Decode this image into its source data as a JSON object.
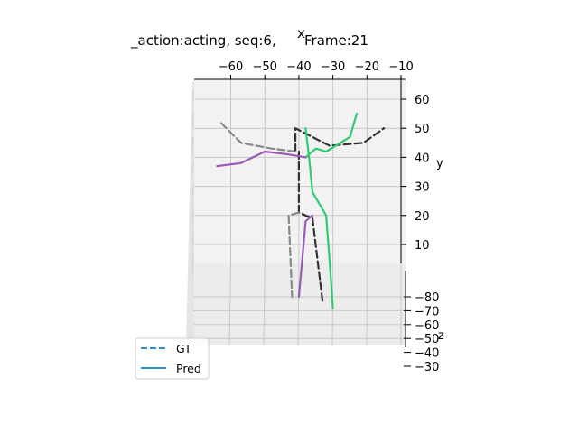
{
  "chart_data": {
    "type": "line",
    "projection": "3d",
    "title": "_action:acting, seq:6, ",
    "title_suffix": "Frame:21",
    "xlabel": "x",
    "ylabel": "y",
    "zlabel": "z",
    "x_ticks": [
      "−60",
      "−50",
      "−40",
      "−30",
      "−20",
      "−10"
    ],
    "y_ticks": [
      "10",
      "20",
      "30",
      "40",
      "50",
      "60"
    ],
    "z_ticks": [
      "−80",
      "−70",
      "−60",
      "−50",
      "−40",
      "−30"
    ],
    "legend": {
      "placement": "lower-left",
      "entries": [
        {
          "label": "GT",
          "style": "dashed",
          "color": "#2c8fc9"
        },
        {
          "label": "Pred",
          "style": "solid",
          "color": "#2c8fc9"
        }
      ]
    },
    "colors": {
      "gt_right": "#333333",
      "gt_left": "#888888",
      "pred_right": "#2ecc71",
      "pred_left": "#9b59b6",
      "pane": "#f2f2f2",
      "grid": "#c8c8c8"
    },
    "series": [
      {
        "group": "GT",
        "side": "right",
        "style": "dashed",
        "color": "#333333",
        "x": [
          -41,
          -41,
          -31,
          -21,
          -15
        ],
        "y": [
          42,
          50,
          44,
          45,
          50
        ]
      },
      {
        "group": "GT",
        "side": "left",
        "style": "dashed",
        "color": "#888888",
        "x": [
          -41,
          -48,
          -57,
          -63
        ],
        "y": [
          42,
          43,
          45,
          52
        ]
      },
      {
        "group": "GT",
        "side": "right",
        "style": "dashed",
        "color": "#333333",
        "x": [
          -40,
          -40,
          -36,
          -33
        ],
        "y": [
          42,
          21,
          19,
          -10
        ]
      },
      {
        "group": "GT",
        "side": "left",
        "style": "dashed",
        "color": "#888888",
        "x": [
          -40,
          -43,
          -42
        ],
        "y": [
          21,
          20,
          -8
        ]
      },
      {
        "group": "Pred",
        "side": "right",
        "style": "solid",
        "color": "#2ecc71",
        "x": [
          -38,
          -35,
          -32,
          -25,
          -23
        ],
        "y": [
          40,
          43,
          42,
          47,
          55
        ]
      },
      {
        "group": "Pred",
        "side": "left",
        "style": "solid",
        "color": "#9b59b6",
        "x": [
          -38,
          -43,
          -50,
          -57,
          -64
        ],
        "y": [
          40,
          41,
          42,
          38,
          37
        ]
      },
      {
        "group": "Pred",
        "side": "right",
        "style": "solid",
        "color": "#2ecc71",
        "x": [
          -38,
          -37,
          -36,
          -32,
          -31,
          -30
        ],
        "y": [
          50,
          40,
          28,
          20,
          5,
          -12
        ]
      },
      {
        "group": "Pred",
        "side": "left",
        "style": "solid",
        "color": "#9b59b6",
        "x": [
          -36,
          -38,
          -39,
          -40
        ],
        "y": [
          20,
          18,
          5,
          -8
        ]
      }
    ]
  }
}
